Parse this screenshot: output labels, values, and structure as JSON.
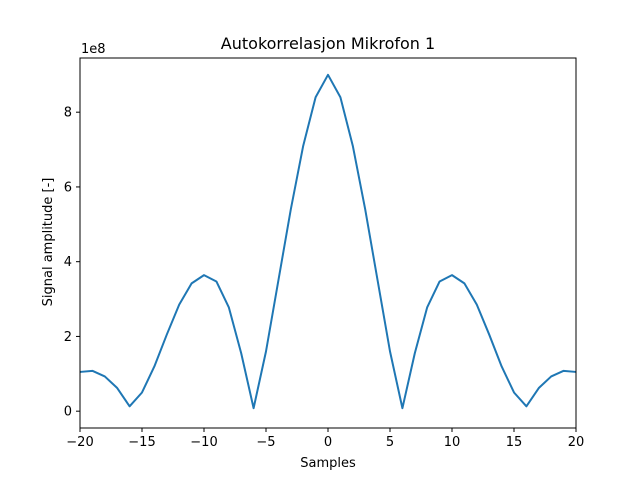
{
  "chart_data": {
    "type": "line",
    "title": "Autokorrelasjon Mikrofon 1",
    "xlabel": "Samples",
    "ylabel": "Signal amplitude [-]",
    "y_offset_label": "1e8",
    "xlim": [
      -20,
      20
    ],
    "ylim": [
      -0.45,
      9.45
    ],
    "x_ticks": [
      -20,
      -15,
      -10,
      -5,
      0,
      5,
      10,
      15,
      20
    ],
    "x_tick_labels": [
      "−20",
      "−15",
      "−10",
      "−5",
      "0",
      "5",
      "10",
      "15",
      "20"
    ],
    "y_ticks": [
      0,
      2,
      4,
      6,
      8
    ],
    "y_tick_labels": [
      "0",
      "2",
      "4",
      "6",
      "8"
    ],
    "grid": false,
    "color": "#1f77b4",
    "series": [
      {
        "x": [
          -20,
          -19,
          -18,
          -17,
          -16,
          -15,
          -14,
          -13,
          -12,
          -11,
          -10,
          -9,
          -8,
          -7,
          -6,
          -5,
          -4,
          -3,
          -2,
          -1,
          0,
          1,
          2,
          3,
          4,
          5,
          6,
          7,
          8,
          9,
          10,
          11,
          12,
          13,
          14,
          15,
          16,
          17,
          18,
          19,
          20
        ],
        "values": [
          1.05,
          1.08,
          0.93,
          0.62,
          0.13,
          0.5,
          1.2,
          2.05,
          2.85,
          3.42,
          3.64,
          3.47,
          2.78,
          1.55,
          0.08,
          1.6,
          3.5,
          5.4,
          7.1,
          8.4,
          9.0,
          8.4,
          7.1,
          5.4,
          3.5,
          1.6,
          0.08,
          1.55,
          2.78,
          3.47,
          3.64,
          3.42,
          2.85,
          2.05,
          1.2,
          0.5,
          0.13,
          0.62,
          0.93,
          1.08,
          1.05
        ]
      }
    ]
  }
}
